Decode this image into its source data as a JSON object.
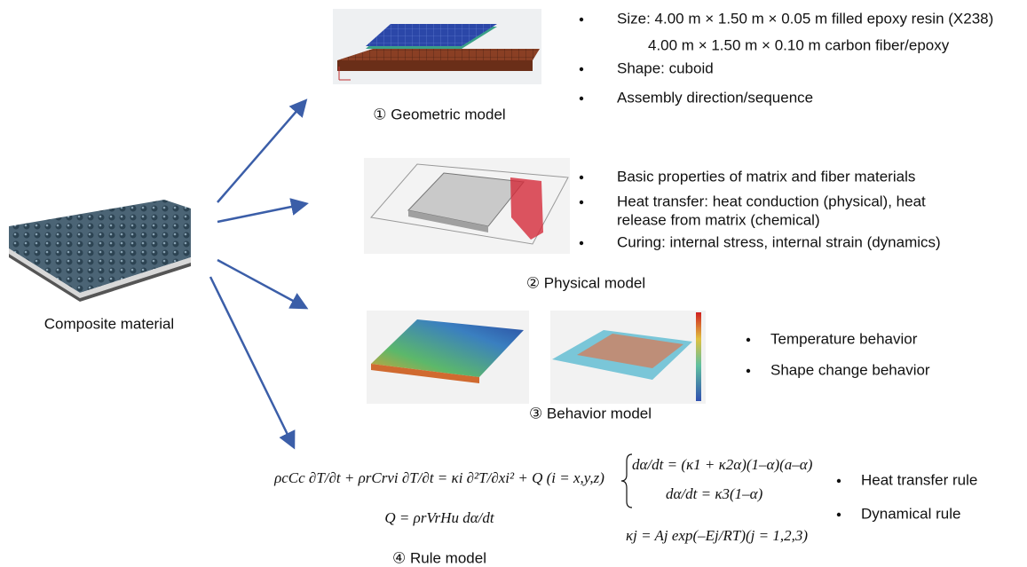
{
  "composite": {
    "label": "Composite material"
  },
  "models": [
    {
      "caption": "① Geometric model",
      "bullets": [
        [
          "Size: 4.00 m × 1.50 m × 0.05 m filled epoxy resin (X238)",
          "4.00 m × 1.50 m × 0.10 m carbon fiber/epoxy"
        ],
        [
          "Shape: cuboid"
        ],
        [
          "Assembly direction/sequence"
        ]
      ]
    },
    {
      "caption": "② Physical model",
      "bullets": [
        [
          "Basic properties of matrix and fiber materials"
        ],
        [
          "Heat transfer: heat conduction (physical), heat",
          "release from matrix (chemical)"
        ],
        [
          "Curing: internal stress, internal strain (dynamics)"
        ]
      ]
    },
    {
      "caption": "③ Behavior  model",
      "bullets": [
        [
          "Temperature behavior"
        ],
        [
          "Shape change behavior"
        ]
      ]
    },
    {
      "caption": "④ Rule model",
      "bullets": [
        [
          "Heat transfer rule"
        ],
        [
          "Dynamical rule"
        ]
      ],
      "equations": [
        "ρcCc ∂T/∂t + ρrCrvi ∂T/∂t = κi ∂²T/∂xi² + Q (i = x,y,z)",
        "Q = ρrVrHu dα/dt",
        "dα/dt = (κ1 + κ2α)(1–α)(a–α)",
        "dα/dt = κ3(1–α)",
        "κj = Aj exp(–Ej/RT)(j = 1,2,3)"
      ]
    }
  ]
}
